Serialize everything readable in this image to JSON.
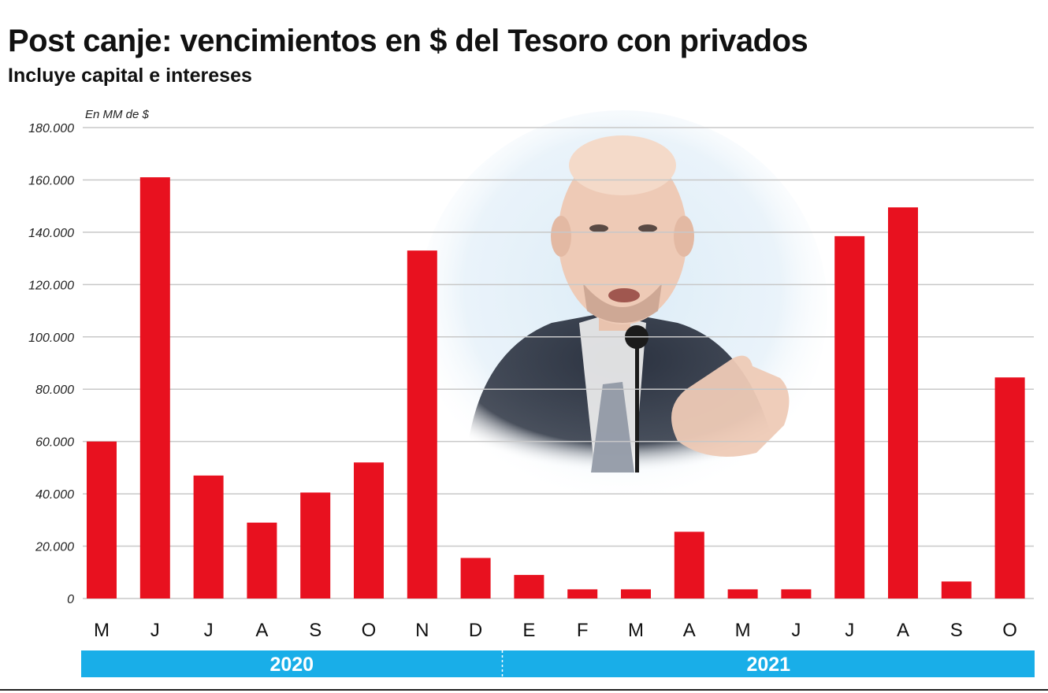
{
  "header": {
    "title": "Post canje: vencimientos en $ del Tesoro con privados",
    "subtitle": "Incluye capital e intereses"
  },
  "colors": {
    "bar": "#e8111f",
    "grid": "#c8c8c8",
    "year_band": "#19aee8",
    "photo_background": "#dcecf7",
    "suit": "#2b3240"
  },
  "photo": {
    "description_icon": "person-speaking-photo"
  },
  "chart_data": {
    "type": "bar",
    "unit_label": "En MM de $",
    "categories": [
      "M",
      "J",
      "J",
      "A",
      "S",
      "O",
      "N",
      "D",
      "E",
      "F",
      "M",
      "A",
      "M",
      "J",
      "J",
      "A",
      "S",
      "O"
    ],
    "values": [
      60000,
      161000,
      47000,
      29000,
      40500,
      52000,
      133000,
      15500,
      9000,
      3500,
      3500,
      25500,
      3500,
      3500,
      138500,
      149500,
      6500,
      84500
    ],
    "ylim": [
      0,
      180000
    ],
    "yticks": [
      0,
      20000,
      40000,
      60000,
      80000,
      100000,
      120000,
      140000,
      160000,
      180000
    ],
    "ytick_labels": [
      "0",
      "20.000",
      "40.000",
      "60.000",
      "80.000",
      "100.000",
      "120.000",
      "140.000",
      "160.000",
      "180.000"
    ],
    "grid": true,
    "years": [
      {
        "label": "2020",
        "start_index": 0,
        "end_index": 7
      },
      {
        "label": "2021",
        "start_index": 8,
        "end_index": 17
      }
    ]
  }
}
